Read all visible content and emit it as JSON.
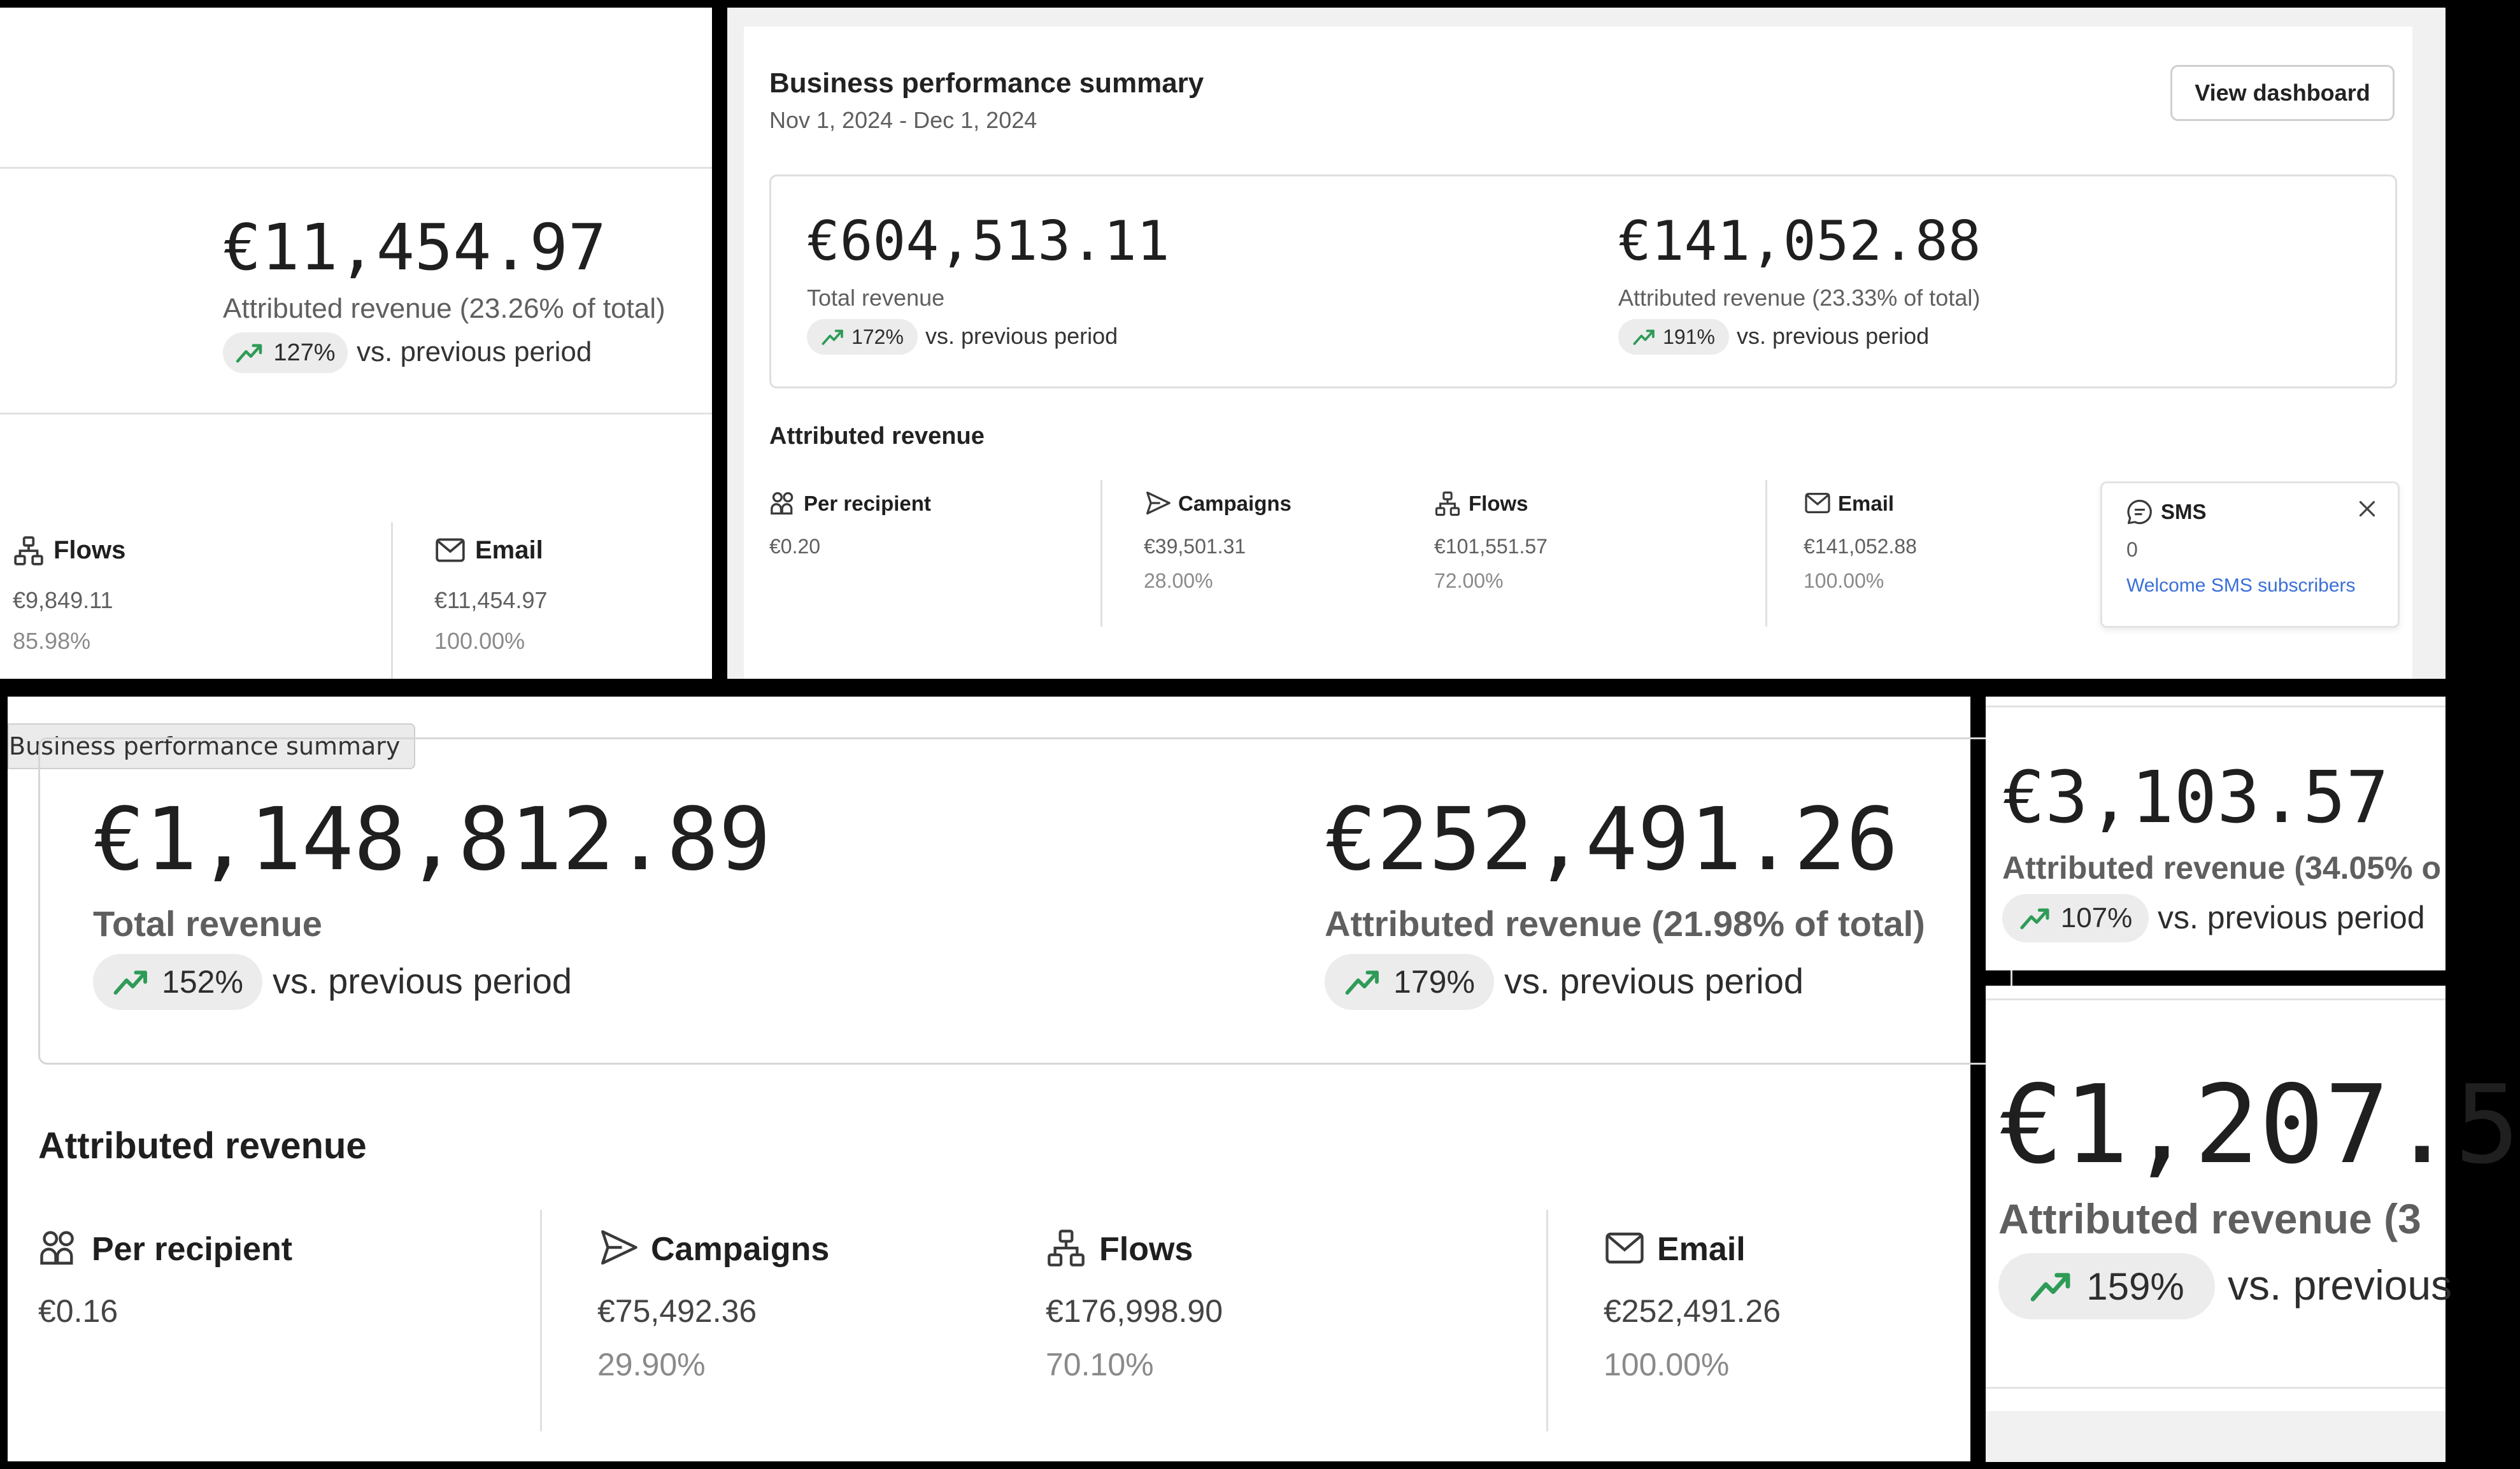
{
  "colors": {
    "trend_up": "#2e9b57",
    "link": "#3a6fd8",
    "badge_bg": "#ececec"
  },
  "panel_a": {
    "value": "€11,454.97",
    "label": "Attributed revenue (23.26% of total)",
    "change": "127%",
    "compare_text": "vs. previous period",
    "channels": [
      {
        "icon": "flows-icon",
        "label": "Flows",
        "value": "€9,849.11",
        "percent": "85.98%"
      },
      {
        "icon": "email-icon",
        "label": "Email",
        "value": "€11,454.97",
        "percent": "100.00%"
      }
    ]
  },
  "panel_b": {
    "title": "Business performance summary",
    "date_range": "Nov 1, 2024 - Dec 1, 2024",
    "view_button": "View dashboard",
    "total": {
      "value": "€604,513.11",
      "label": "Total revenue",
      "change": "172%",
      "compare_text": "vs. previous period"
    },
    "attributed": {
      "value": "€141,052.88",
      "label": "Attributed revenue (23.33% of total)",
      "change": "191%",
      "compare_text": "vs. previous period"
    },
    "section_title": "Attributed revenue",
    "channels": [
      {
        "icon": "per-recipient-icon",
        "label": "Per recipient",
        "value": "€0.20",
        "percent": ""
      },
      {
        "icon": "campaigns-icon",
        "label": "Campaigns",
        "value": "€39,501.31",
        "percent": "28.00%"
      },
      {
        "icon": "flows-icon",
        "label": "Flows",
        "value": "€101,551.57",
        "percent": "72.00%"
      },
      {
        "icon": "email-icon",
        "label": "Email",
        "value": "€141,052.88",
        "percent": "100.00%"
      }
    ],
    "sms": {
      "label": "SMS",
      "value": "0",
      "link": "Welcome SMS subscribers"
    }
  },
  "panel_c": {
    "tooltip": "Business performance summary",
    "total": {
      "value": "€1,148,812.89",
      "label": "Total revenue",
      "change": "152%",
      "compare_text": "vs. previous period"
    },
    "attributed": {
      "value": "€252,491.26",
      "label": "Attributed revenue (21.98% of total)",
      "change": "179%",
      "compare_text": "vs. previous period"
    },
    "section_title": "Attributed revenue",
    "channels": [
      {
        "icon": "per-recipient-icon",
        "label": "Per recipient",
        "value": "€0.16",
        "percent": ""
      },
      {
        "icon": "campaigns-icon",
        "label": "Campaigns",
        "value": "€75,492.36",
        "percent": "29.90%"
      },
      {
        "icon": "flows-icon",
        "label": "Flows",
        "value": "€176,998.90",
        "percent": "70.10%"
      },
      {
        "icon": "email-icon",
        "label": "Email",
        "value": "€252,491.26",
        "percent": "100.00%"
      }
    ]
  },
  "panel_d": {
    "value": "€3,103.57",
    "label": "Attributed revenue (34.05% o",
    "change": "107%",
    "compare_text": "vs. previous period"
  },
  "panel_e": {
    "value": "€1,207.5",
    "label": "Attributed revenue (3",
    "change": "159%",
    "compare_text": "vs. previous"
  }
}
